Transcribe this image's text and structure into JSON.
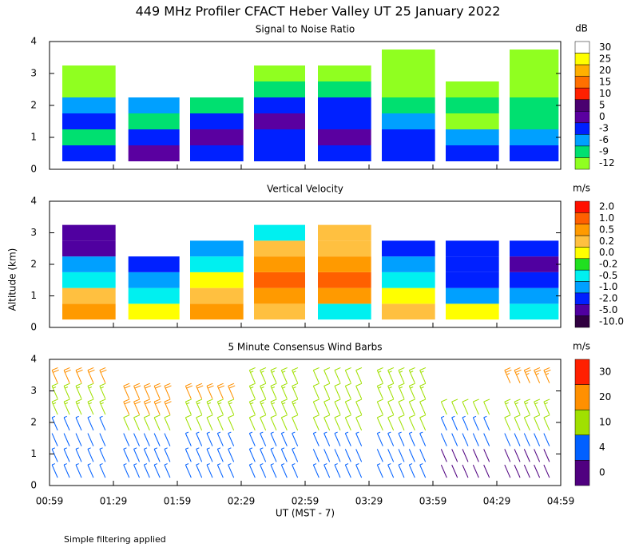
{
  "figure": {
    "title": "449 MHz Profiler CFACT Heber Valley UT 25 January 2022",
    "ylabel": "Altitude (km)",
    "xlabel": "UT  (MST - 7)",
    "footer": "Simple filtering applied",
    "xticks": [
      "00:59",
      "01:29",
      "01:59",
      "02:29",
      "02:59",
      "03:29",
      "03:59",
      "04:29",
      "04:59"
    ]
  },
  "chart_data": [
    {
      "type": "heatmap",
      "title": "Signal to Noise Ratio",
      "unit": "dB",
      "ylim": [
        0,
        4
      ],
      "yticks": [
        0,
        1,
        2,
        3,
        4
      ],
      "colorbar": {
        "ticks": [
          30,
          25,
          20,
          15,
          10,
          5,
          0,
          -3,
          -6,
          -9,
          -12
        ],
        "colors": [
          "#ffffff",
          "#ffff00",
          "#ffb000",
          "#ff7000",
          "#ff2000",
          "#4a0070",
          "#5a00a0",
          "#0020ff",
          "#00a0ff",
          "#00e070",
          "#90ff20"
        ]
      },
      "altitudes": [
        0.5,
        1.0,
        1.5,
        2.0,
        2.5,
        3.0,
        3.5
      ],
      "segments": [
        {
          "start": "01:05",
          "end": "01:30",
          "values": [
            -3,
            -9,
            -3,
            -6,
            -12,
            -12,
            null
          ]
        },
        {
          "start": "01:36",
          "end": "02:00",
          "values": [
            0,
            -3,
            -9,
            -6,
            null,
            null,
            null
          ]
        },
        {
          "start": "02:05",
          "end": "02:30",
          "values": [
            -3,
            0,
            -3,
            -9,
            null,
            null,
            null
          ]
        },
        {
          "start": "02:35",
          "end": "02:59",
          "values": [
            -3,
            -3,
            0,
            -3,
            -9,
            -12,
            null
          ]
        },
        {
          "start": "03:05",
          "end": "03:30",
          "values": [
            -3,
            0,
            -3,
            -3,
            -9,
            -12,
            null
          ]
        },
        {
          "start": "03:35",
          "end": "04:00",
          "values": [
            -3,
            -3,
            -6,
            -9,
            -12,
            -12,
            -12
          ]
        },
        {
          "start": "04:05",
          "end": "04:30",
          "values": [
            -3,
            -6,
            -12,
            -9,
            -12,
            null,
            null
          ]
        },
        {
          "start": "04:35",
          "end": "04:58",
          "values": [
            -3,
            -6,
            -9,
            -9,
            -12,
            -12,
            -12
          ]
        }
      ]
    },
    {
      "type": "heatmap",
      "title": "Vertical Velocity",
      "unit": "m/s",
      "ylim": [
        0,
        4
      ],
      "yticks": [
        0,
        1,
        2,
        3,
        4
      ],
      "colorbar": {
        "ticks": [
          {
            "value": 2,
            "label": "2.0"
          },
          {
            "value": 1,
            "label": "1.0"
          },
          0.5,
          0.2,
          {
            "value": 0,
            "label": "0.0"
          },
          -0.2,
          -0.5,
          {
            "value": -1,
            "label": "-1.0"
          },
          {
            "value": -2,
            "label": "-2.0"
          },
          {
            "value": -5,
            "label": "-5.0"
          },
          {
            "value": -10,
            "label": "-10.0"
          }
        ],
        "colors": [
          "#ff1000",
          "#ff6000",
          "#ff9a00",
          "#ffc040",
          "#ffff00",
          "#20e020",
          "#00f0f0",
          "#00a0ff",
          "#0020ff",
          "#5000a0",
          "#300040"
        ]
      },
      "altitudes": [
        0.5,
        1.0,
        1.5,
        2.0,
        2.5,
        3.0,
        3.5
      ],
      "segments": [
        {
          "start": "01:05",
          "end": "01:30",
          "values": [
            0.5,
            0.2,
            -0.5,
            -1,
            -5,
            -5,
            null
          ]
        },
        {
          "start": "01:36",
          "end": "02:00",
          "values": [
            0,
            -0.5,
            -1,
            -2,
            null,
            null,
            null
          ]
        },
        {
          "start": "02:05",
          "end": "02:30",
          "values": [
            0.5,
            0.2,
            0,
            -0.5,
            -1,
            null,
            null
          ]
        },
        {
          "start": "02:35",
          "end": "02:59",
          "values": [
            0.2,
            0.5,
            1,
            0.5,
            0.2,
            -0.5,
            null
          ]
        },
        {
          "start": "03:05",
          "end": "03:30",
          "values": [
            -0.5,
            0.5,
            1,
            0.5,
            0.2,
            0.2,
            null
          ]
        },
        {
          "start": "03:35",
          "end": "04:00",
          "values": [
            0.2,
            0,
            -0.5,
            -1,
            -2,
            null,
            null
          ]
        },
        {
          "start": "04:05",
          "end": "04:30",
          "values": [
            0,
            -1,
            -2,
            -2,
            -2,
            null,
            null
          ]
        },
        {
          "start": "04:35",
          "end": "04:58",
          "values": [
            -0.5,
            -1,
            -2,
            -5,
            -2,
            null,
            null
          ]
        }
      ]
    },
    {
      "type": "barbs",
      "title": "5 Minute Consensus Wind Barbs",
      "unit": "m/s",
      "ylim": [
        0,
        4
      ],
      "yticks": [
        0,
        1,
        2,
        3,
        4
      ],
      "colorbar": {
        "ticks": [
          30,
          20,
          10,
          4,
          0
        ],
        "colors": [
          "#ff2000",
          "#ff9000",
          "#a0e000",
          "#0060ff",
          "#500080"
        ]
      },
      "altitudes": [
        0.25,
        0.75,
        1.25,
        1.75,
        2.25,
        2.75,
        3.25
      ],
      "segments": [
        {
          "start": "01:00",
          "end": "01:28",
          "values": [
            8,
            6,
            4,
            8,
            16,
            18,
            22
          ]
        },
        {
          "start": "01:34",
          "end": "01:58",
          "values": [
            8,
            6,
            4,
            12,
            20,
            22,
            null
          ]
        },
        {
          "start": "02:03",
          "end": "02:28",
          "values": [
            8,
            6,
            6,
            14,
            18,
            20,
            null
          ]
        },
        {
          "start": "02:33",
          "end": "02:58",
          "values": [
            8,
            6,
            8,
            14,
            16,
            16,
            18
          ]
        },
        {
          "start": "03:03",
          "end": "03:28",
          "values": [
            6,
            4,
            6,
            12,
            14,
            14,
            14
          ]
        },
        {
          "start": "03:33",
          "end": "03:58",
          "values": [
            8,
            4,
            6,
            12,
            14,
            16,
            18
          ]
        },
        {
          "start": "04:03",
          "end": "04:28",
          "values": [
            2,
            2,
            4,
            8,
            12,
            null,
            null
          ]
        },
        {
          "start": "04:33",
          "end": "04:56",
          "values": [
            2,
            2,
            4,
            10,
            16,
            null,
            25
          ]
        }
      ]
    }
  ]
}
